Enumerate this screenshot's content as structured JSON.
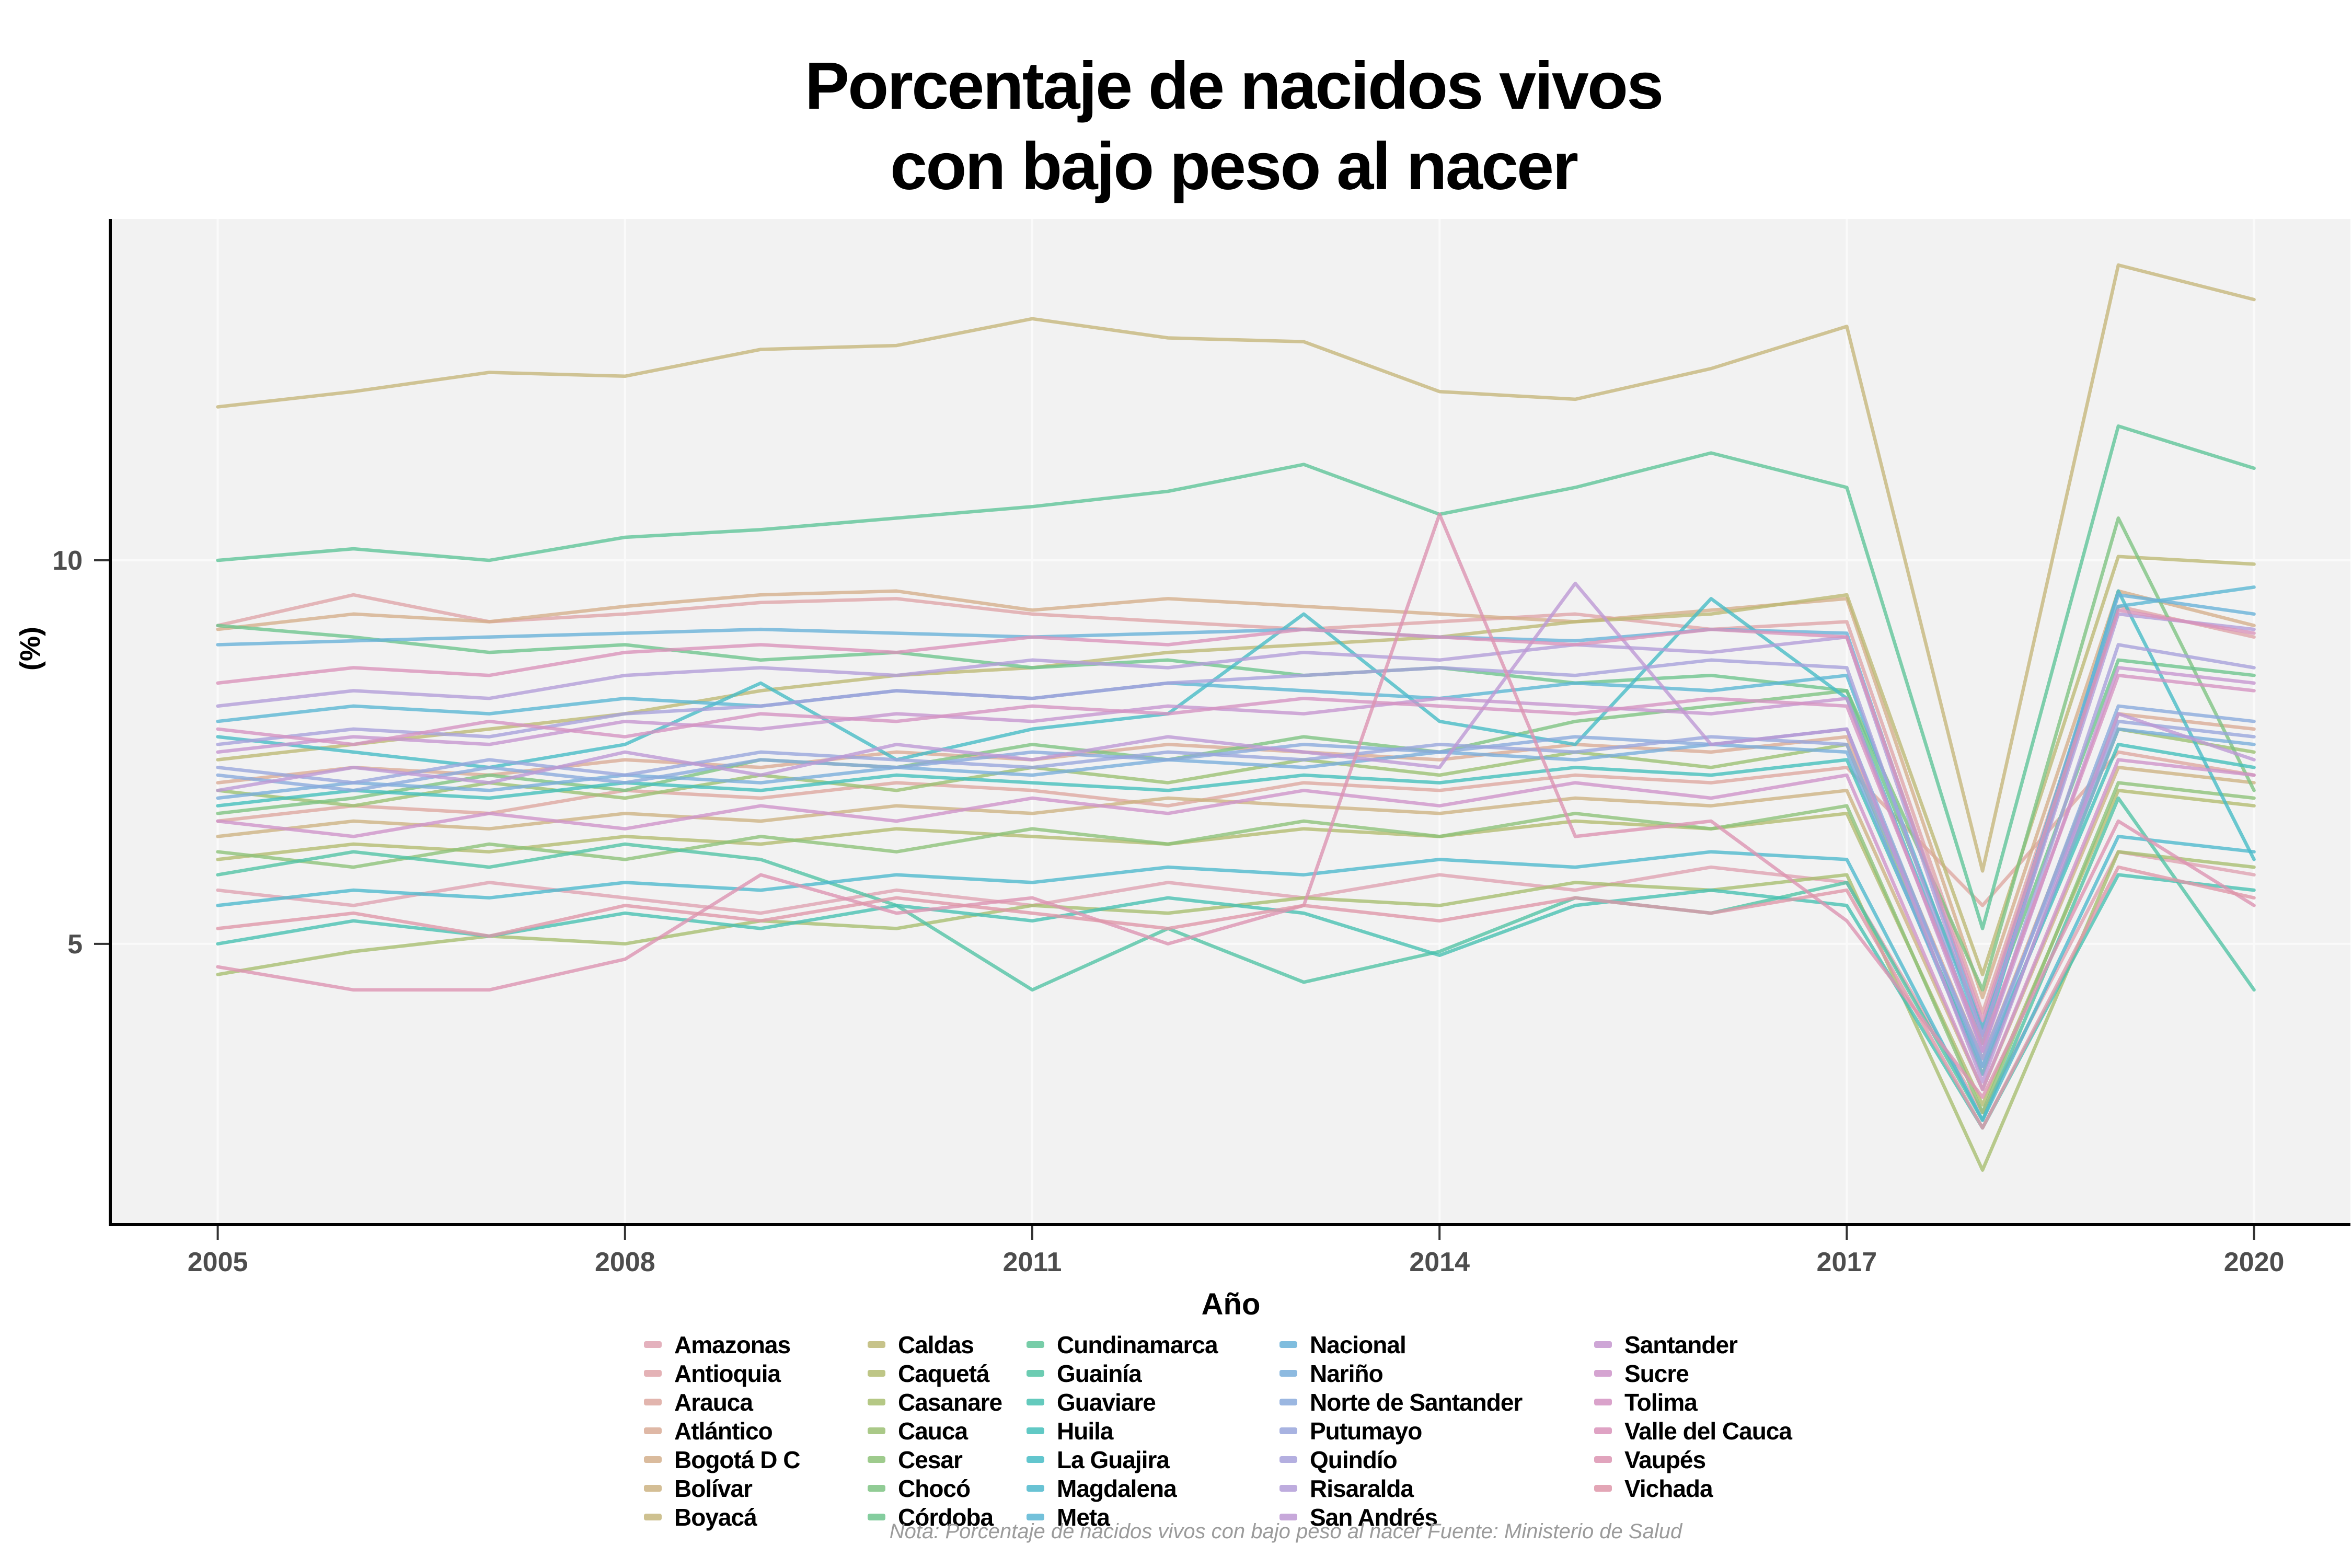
{
  "title": {
    "line1": "Porcentaje de nacidos vivos",
    "line2": "con bajo peso al nacer"
  },
  "axes": {
    "x_label": "Año",
    "y_label": "(%)"
  },
  "note": "Nota: Porcentaje de nacidos vivos con bajo peso al nacer Fuente: Ministerio de Salud",
  "style": {
    "panel_bg": "#f2f2f2",
    "grid_color": "#fafafa",
    "axis_line_color": "#000000",
    "tick_mark_color": "#333333",
    "tick_label_color": "#4d4d4d",
    "line_opacity": 0.8
  },
  "chart_data": {
    "type": "line",
    "x": [
      2005,
      2006,
      2007,
      2008,
      2009,
      2010,
      2011,
      2012,
      2013,
      2014,
      2015,
      2016,
      2017,
      2018,
      2019,
      2020
    ],
    "x_ticks": [
      2005,
      2008,
      2011,
      2014,
      2017,
      2020
    ],
    "y_ticks": [
      5,
      10
    ],
    "xlim": [
      2004.22,
      2020.71
    ],
    "ylim": [
      1.36,
      14.45
    ],
    "grid": true,
    "legend_position": "bottom",
    "legend_columns": 5,
    "legend_rows_per_column": 7,
    "series": [
      {
        "name": "Amazonas",
        "color": "#DFA3B1",
        "values": [
          5.7,
          5.5,
          5.8,
          5.6,
          5.4,
          5.7,
          5.5,
          5.8,
          5.6,
          5.9,
          5.7,
          6.0,
          5.8,
          2.8,
          6.2,
          5.9
        ]
      },
      {
        "name": "Antioquia",
        "color": "#DFA5A9",
        "values": [
          9.15,
          9.55,
          9.2,
          9.3,
          9.45,
          9.5,
          9.3,
          9.2,
          9.1,
          9.2,
          9.3,
          9.1,
          9.2,
          4.1,
          9.4,
          9.0
        ]
      },
      {
        "name": "Arauca",
        "color": "#DDA8A0",
        "values": [
          6.6,
          6.8,
          6.7,
          7.0,
          6.9,
          7.1,
          7.0,
          6.8,
          7.1,
          7.0,
          7.2,
          7.1,
          7.3,
          5.5,
          7.5,
          7.2
        ]
      },
      {
        "name": "Atlántico",
        "color": "#D9AB96",
        "values": [
          7.1,
          7.3,
          7.2,
          7.4,
          7.3,
          7.5,
          7.4,
          7.6,
          7.5,
          7.4,
          7.6,
          7.5,
          7.7,
          3.5,
          8.0,
          7.8
        ]
      },
      {
        "name": "Bogotá D C",
        "color": "#D4AF8C",
        "values": [
          9.1,
          9.3,
          9.2,
          9.4,
          9.55,
          9.6,
          9.35,
          9.5,
          9.4,
          9.3,
          9.2,
          9.35,
          9.5,
          4.3,
          9.6,
          9.15
        ]
      },
      {
        "name": "Bolívar",
        "color": "#CDB383",
        "values": [
          6.4,
          6.6,
          6.5,
          6.7,
          6.6,
          6.8,
          6.7,
          6.9,
          6.8,
          6.7,
          6.9,
          6.8,
          7.0,
          3.1,
          7.3,
          7.1
        ]
      },
      {
        "name": "Boyacá",
        "color": "#C6B67C",
        "values": [
          12.0,
          12.2,
          12.45,
          12.4,
          12.75,
          12.8,
          13.15,
          12.9,
          12.85,
          12.2,
          12.1,
          12.5,
          13.05,
          5.95,
          13.85,
          13.4
        ]
      },
      {
        "name": "Caldas",
        "color": "#BDB975",
        "values": [
          7.4,
          7.6,
          7.8,
          8.0,
          8.3,
          8.5,
          8.6,
          8.8,
          8.9,
          9.0,
          9.2,
          9.3,
          9.55,
          4.6,
          10.05,
          9.95
        ]
      },
      {
        "name": "Caquetá",
        "color": "#B3BC71",
        "values": [
          6.1,
          6.3,
          6.2,
          6.4,
          6.3,
          6.5,
          6.4,
          6.3,
          6.5,
          6.4,
          6.6,
          6.5,
          6.7,
          2.9,
          7.0,
          6.8
        ]
      },
      {
        "name": "Casanare",
        "color": "#A8BE70",
        "values": [
          4.6,
          4.9,
          5.1,
          5.0,
          5.3,
          5.2,
          5.5,
          5.4,
          5.6,
          5.5,
          5.8,
          5.7,
          5.9,
          2.05,
          6.2,
          6.0
        ]
      },
      {
        "name": "Cauca",
        "color": "#9BC073",
        "values": [
          7.0,
          6.8,
          7.1,
          6.9,
          7.2,
          7.0,
          7.3,
          7.1,
          7.4,
          7.2,
          7.5,
          7.3,
          7.6,
          3.3,
          7.8,
          7.5
        ]
      },
      {
        "name": "Cesar",
        "color": "#8DC279",
        "values": [
          6.2,
          6.0,
          6.3,
          6.1,
          6.4,
          6.2,
          6.5,
          6.3,
          6.6,
          6.4,
          6.7,
          6.5,
          6.8,
          2.8,
          7.1,
          6.9
        ]
      },
      {
        "name": "Chocó",
        "color": "#7EC382",
        "values": [
          6.7,
          6.9,
          7.2,
          7.0,
          7.4,
          7.3,
          7.6,
          7.4,
          7.7,
          7.5,
          7.9,
          8.1,
          8.3,
          4.4,
          10.55,
          7.0
        ]
      },
      {
        "name": "Córdoba",
        "color": "#6EC48D",
        "values": [
          9.15,
          9.0,
          8.8,
          8.9,
          8.7,
          8.8,
          8.6,
          8.7,
          8.5,
          8.6,
          8.4,
          8.5,
          8.3,
          3.9,
          8.7,
          8.5
        ]
      },
      {
        "name": "Cundinamarca",
        "color": "#5FC499",
        "values": [
          10.0,
          10.15,
          10.0,
          10.3,
          10.4,
          10.55,
          10.7,
          10.9,
          11.25,
          10.6,
          10.95,
          11.4,
          10.95,
          5.2,
          11.75,
          11.2
        ]
      },
      {
        "name": "Guainía",
        "color": "#52C3A5",
        "values": [
          5.9,
          6.2,
          6.0,
          6.3,
          6.1,
          5.5,
          4.4,
          5.2,
          4.5,
          4.9,
          5.6,
          5.4,
          5.8,
          2.7,
          6.9,
          4.4
        ]
      },
      {
        "name": "Guaviare",
        "color": "#49C1B1",
        "values": [
          5.0,
          5.3,
          5.1,
          5.4,
          5.2,
          5.5,
          5.3,
          5.6,
          5.4,
          4.85,
          5.5,
          5.7,
          5.5,
          2.6,
          5.9,
          5.7
        ]
      },
      {
        "name": "Huila",
        "color": "#45BFBB",
        "values": [
          6.8,
          7.0,
          6.9,
          7.1,
          7.0,
          7.2,
          7.1,
          7.0,
          7.2,
          7.1,
          7.3,
          7.2,
          7.4,
          3.4,
          7.6,
          7.3
        ]
      },
      {
        "name": "La Guajira",
        "color": "#47BCC5",
        "values": [
          7.7,
          7.5,
          7.3,
          7.6,
          8.4,
          7.4,
          7.8,
          8.0,
          9.3,
          7.9,
          7.6,
          9.5,
          8.2,
          3.7,
          9.6,
          6.1
        ]
      },
      {
        "name": "Magdalena",
        "color": "#4FB9CD",
        "values": [
          5.5,
          5.7,
          5.6,
          5.8,
          5.7,
          5.9,
          5.8,
          6.0,
          5.9,
          6.1,
          6.0,
          6.2,
          6.1,
          2.7,
          6.4,
          6.2
        ]
      },
      {
        "name": "Meta",
        "color": "#5BB6D3",
        "values": [
          7.9,
          8.1,
          8.0,
          8.2,
          8.1,
          8.3,
          8.2,
          8.4,
          8.3,
          8.2,
          8.4,
          8.3,
          8.5,
          3.8,
          9.4,
          9.65
        ]
      },
      {
        "name": "Nacional",
        "color": "#69B2D8",
        "values": [
          8.9,
          8.95,
          9.0,
          9.05,
          9.1,
          9.05,
          9.0,
          9.05,
          9.1,
          9.0,
          8.95,
          9.1,
          9.05,
          3.9,
          9.55,
          9.3
        ]
      },
      {
        "name": "Nariño",
        "color": "#79AEDB",
        "values": [
          6.9,
          7.1,
          7.0,
          7.2,
          7.1,
          7.3,
          7.2,
          7.4,
          7.3,
          7.5,
          7.4,
          7.6,
          7.5,
          3.3,
          7.8,
          7.6
        ]
      },
      {
        "name": "Norte de Santander",
        "color": "#8AAADC",
        "values": [
          7.2,
          7.0,
          7.3,
          7.1,
          7.4,
          7.3,
          7.5,
          7.4,
          7.6,
          7.5,
          7.7,
          7.6,
          7.8,
          3.4,
          8.1,
          7.9
        ]
      },
      {
        "name": "Putumayo",
        "color": "#99A6DC",
        "values": [
          7.3,
          7.1,
          7.4,
          7.2,
          7.5,
          7.4,
          7.3,
          7.5,
          7.4,
          7.6,
          7.5,
          7.7,
          7.6,
          3.5,
          7.9,
          7.7
        ]
      },
      {
        "name": "Quindío",
        "color": "#A7A1DB",
        "values": [
          7.6,
          7.8,
          7.7,
          8.0,
          8.1,
          8.3,
          8.2,
          8.4,
          8.5,
          8.6,
          8.5,
          8.7,
          8.6,
          3.6,
          8.9,
          8.6
        ]
      },
      {
        "name": "Risaralda",
        "color": "#B39DD8",
        "values": [
          8.1,
          8.3,
          8.2,
          8.5,
          8.6,
          8.5,
          8.7,
          8.6,
          8.8,
          8.7,
          8.9,
          8.8,
          9.0,
          3.8,
          9.3,
          9.1
        ]
      },
      {
        "name": "San Andrés",
        "color": "#BD99D4",
        "values": [
          7.0,
          7.3,
          7.1,
          7.5,
          7.2,
          7.6,
          7.4,
          7.7,
          7.5,
          7.3,
          9.7,
          7.6,
          7.8,
          3.2,
          8.0,
          7.4
        ]
      },
      {
        "name": "Santander",
        "color": "#C696CF",
        "values": [
          7.5,
          7.7,
          7.6,
          7.9,
          7.8,
          8.0,
          7.9,
          8.1,
          8.0,
          8.2,
          8.1,
          8.0,
          8.2,
          3.6,
          8.6,
          8.4
        ]
      },
      {
        "name": "Sucre",
        "color": "#CE94C9",
        "values": [
          6.6,
          6.4,
          6.7,
          6.5,
          6.8,
          6.6,
          6.9,
          6.7,
          7.0,
          6.8,
          7.1,
          6.9,
          7.2,
          3.1,
          7.4,
          7.2
        ]
      },
      {
        "name": "Tolima",
        "color": "#D493C2",
        "values": [
          7.8,
          7.6,
          7.9,
          7.7,
          8.0,
          7.9,
          8.1,
          8.0,
          8.2,
          8.1,
          8.0,
          8.2,
          8.1,
          3.7,
          8.5,
          8.3
        ]
      },
      {
        "name": "Valle del Cauca",
        "color": "#D993BA",
        "values": [
          8.4,
          8.6,
          8.5,
          8.8,
          8.9,
          8.8,
          9.0,
          8.9,
          9.1,
          9.0,
          8.9,
          9.1,
          9.0,
          4.0,
          9.35,
          9.05
        ]
      },
      {
        "name": "Vaupés",
        "color": "#DC94B2",
        "values": [
          4.7,
          4.4,
          4.4,
          4.8,
          5.9,
          5.4,
          5.6,
          5.0,
          5.5,
          10.6,
          6.4,
          6.6,
          5.3,
          3.0,
          6.6,
          5.5
        ]
      },
      {
        "name": "Vichada",
        "color": "#DE97A9",
        "values": [
          5.2,
          5.4,
          5.1,
          5.5,
          5.3,
          5.6,
          5.4,
          5.2,
          5.5,
          5.3,
          5.6,
          5.4,
          5.7,
          2.6,
          6.0,
          5.6
        ]
      }
    ]
  }
}
